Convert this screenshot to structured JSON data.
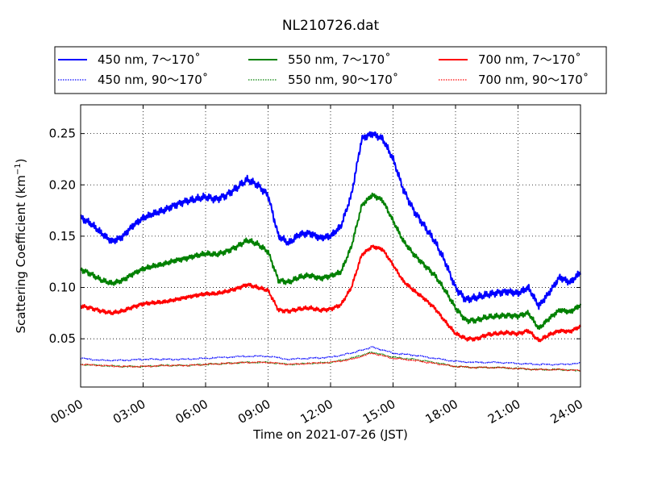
{
  "chart_data": {
    "type": "line",
    "title": "NL210726.dat",
    "xlabel": "Time on 2021-07-26 (JST)",
    "ylabel_main": "Scattering Coefficient (km",
    "ylabel_exp": "−1",
    "ylabel_close": ")",
    "x_unit": "hours since 00:00 JST",
    "xlim": [
      0,
      24
    ],
    "ylim": [
      0.003,
      0.278
    ],
    "grid": true,
    "legend_position": "top",
    "x_ticks": [
      {
        "value": 0,
        "label": "00:00"
      },
      {
        "value": 3,
        "label": "03:00"
      },
      {
        "value": 6,
        "label": "06:00"
      },
      {
        "value": 9,
        "label": "09:00"
      },
      {
        "value": 12,
        "label": "12:00"
      },
      {
        "value": 15,
        "label": "15:00"
      },
      {
        "value": 18,
        "label": "18:00"
      },
      {
        "value": 21,
        "label": "21:00"
      },
      {
        "value": 24,
        "label": "24:00"
      }
    ],
    "y_ticks": [
      {
        "value": 0.05,
        "label": "0.05"
      },
      {
        "value": 0.1,
        "label": "0.10"
      },
      {
        "value": 0.15,
        "label": "0.15"
      },
      {
        "value": 0.2,
        "label": "0.20"
      },
      {
        "value": 0.25,
        "label": "0.25"
      }
    ],
    "series": [
      {
        "name": "450 nm, 7～170˚",
        "color": "#0000ff",
        "style": "solid",
        "x": [
          0,
          0.5,
          1,
          1.5,
          2,
          2.5,
          3,
          3.5,
          4,
          4.5,
          5,
          5.5,
          6,
          6.5,
          7,
          7.5,
          8,
          8.5,
          9,
          9.5,
          10,
          10.5,
          11,
          11.5,
          12,
          12.5,
          13,
          13.5,
          14,
          14.5,
          15,
          15.5,
          16,
          16.5,
          17,
          17.5,
          18,
          18.5,
          19,
          19.5,
          20,
          20.5,
          21,
          21.5,
          22,
          22.5,
          23,
          23.5,
          24
        ],
        "y": [
          0.168,
          0.162,
          0.153,
          0.145,
          0.149,
          0.16,
          0.168,
          0.172,
          0.175,
          0.18,
          0.184,
          0.186,
          0.188,
          0.186,
          0.19,
          0.197,
          0.205,
          0.2,
          0.19,
          0.15,
          0.143,
          0.152,
          0.153,
          0.148,
          0.15,
          0.16,
          0.19,
          0.245,
          0.25,
          0.245,
          0.225,
          0.195,
          0.175,
          0.16,
          0.145,
          0.125,
          0.1,
          0.088,
          0.09,
          0.093,
          0.095,
          0.096,
          0.094,
          0.1,
          0.082,
          0.095,
          0.11,
          0.105,
          0.115
        ]
      },
      {
        "name": "450 nm, 90～170˚",
        "color": "#0000ff",
        "style": "dotted",
        "x": [
          0,
          1,
          2,
          3,
          4,
          5,
          6,
          7,
          8,
          9,
          10,
          11,
          12,
          13,
          14,
          15,
          16,
          17,
          18,
          19,
          20,
          21,
          22,
          23,
          24
        ],
        "y": [
          0.031,
          0.029,
          0.029,
          0.03,
          0.03,
          0.03,
          0.031,
          0.032,
          0.033,
          0.033,
          0.03,
          0.031,
          0.032,
          0.036,
          0.042,
          0.036,
          0.034,
          0.031,
          0.028,
          0.027,
          0.027,
          0.026,
          0.025,
          0.025,
          0.026
        ]
      },
      {
        "name": "550 nm, 7～170˚",
        "color": "#008000",
        "style": "solid",
        "x": [
          0,
          0.5,
          1,
          1.5,
          2,
          2.5,
          3,
          3.5,
          4,
          4.5,
          5,
          5.5,
          6,
          6.5,
          7,
          7.5,
          8,
          8.5,
          9,
          9.5,
          10,
          10.5,
          11,
          11.5,
          12,
          12.5,
          13,
          13.5,
          14,
          14.5,
          15,
          15.5,
          16,
          16.5,
          17,
          17.5,
          18,
          18.5,
          19,
          19.5,
          20,
          20.5,
          21,
          21.5,
          22,
          22.5,
          23,
          23.5,
          24
        ],
        "y": [
          0.118,
          0.113,
          0.107,
          0.104,
          0.107,
          0.113,
          0.118,
          0.121,
          0.123,
          0.126,
          0.128,
          0.131,
          0.133,
          0.132,
          0.135,
          0.14,
          0.146,
          0.142,
          0.135,
          0.107,
          0.105,
          0.11,
          0.112,
          0.109,
          0.111,
          0.115,
          0.14,
          0.18,
          0.19,
          0.185,
          0.165,
          0.145,
          0.132,
          0.122,
          0.112,
          0.097,
          0.08,
          0.068,
          0.068,
          0.071,
          0.072,
          0.073,
          0.072,
          0.075,
          0.06,
          0.07,
          0.078,
          0.076,
          0.083
        ]
      },
      {
        "name": "550 nm, 90～170˚",
        "color": "#008000",
        "style": "dotted",
        "x": [
          0,
          1,
          2,
          3,
          4,
          5,
          6,
          7,
          8,
          9,
          10,
          11,
          12,
          13,
          14,
          15,
          16,
          17,
          18,
          19,
          20,
          21,
          22,
          23,
          24
        ],
        "y": [
          0.025,
          0.024,
          0.023,
          0.023,
          0.024,
          0.024,
          0.025,
          0.026,
          0.027,
          0.027,
          0.025,
          0.026,
          0.027,
          0.031,
          0.037,
          0.032,
          0.03,
          0.027,
          0.023,
          0.022,
          0.022,
          0.021,
          0.02,
          0.02,
          0.019
        ]
      },
      {
        "name": "700 nm, 7～170˚",
        "color": "#ff0000",
        "style": "solid",
        "x": [
          0,
          0.5,
          1,
          1.5,
          2,
          2.5,
          3,
          3.5,
          4,
          4.5,
          5,
          5.5,
          6,
          6.5,
          7,
          7.5,
          8,
          8.5,
          9,
          9.5,
          10,
          10.5,
          11,
          11.5,
          12,
          12.5,
          13,
          13.5,
          14,
          14.5,
          15,
          15.5,
          16,
          16.5,
          17,
          17.5,
          18,
          18.5,
          19,
          19.5,
          20,
          20.5,
          21,
          21.5,
          22,
          22.5,
          23,
          23.5,
          24
        ],
        "y": [
          0.082,
          0.08,
          0.077,
          0.075,
          0.077,
          0.081,
          0.084,
          0.085,
          0.086,
          0.088,
          0.09,
          0.092,
          0.094,
          0.094,
          0.096,
          0.099,
          0.103,
          0.1,
          0.097,
          0.078,
          0.077,
          0.079,
          0.08,
          0.078,
          0.079,
          0.083,
          0.1,
          0.132,
          0.14,
          0.137,
          0.122,
          0.106,
          0.097,
          0.089,
          0.08,
          0.067,
          0.055,
          0.05,
          0.05,
          0.054,
          0.055,
          0.056,
          0.055,
          0.058,
          0.048,
          0.054,
          0.058,
          0.057,
          0.062
        ]
      },
      {
        "name": "700 nm, 90～170˚",
        "color": "#ff0000",
        "style": "dotted",
        "x": [
          0,
          1,
          2,
          3,
          4,
          5,
          6,
          7,
          8,
          9,
          10,
          11,
          12,
          13,
          14,
          15,
          16,
          17,
          18,
          19,
          20,
          21,
          22,
          23,
          24
        ],
        "y": [
          0.025,
          0.024,
          0.023,
          0.023,
          0.024,
          0.024,
          0.025,
          0.026,
          0.027,
          0.027,
          0.025,
          0.026,
          0.027,
          0.03,
          0.036,
          0.031,
          0.029,
          0.026,
          0.023,
          0.022,
          0.022,
          0.021,
          0.02,
          0.02,
          0.019
        ]
      }
    ]
  }
}
